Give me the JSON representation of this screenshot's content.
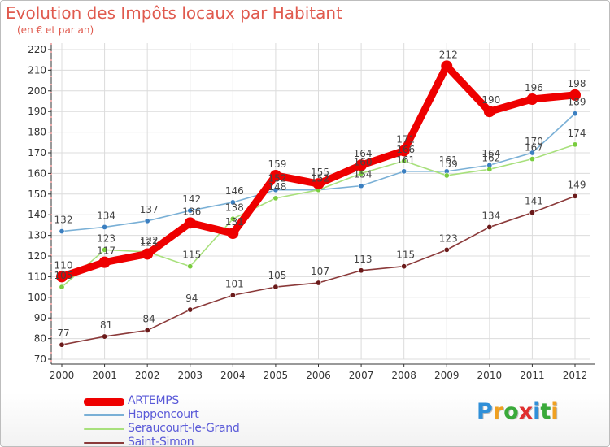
{
  "title": "Evolution des Impôts locaux par Habitant",
  "subtitle": "(en € et par an)",
  "colors": {
    "title": "#e05a4e",
    "axis": "#333333",
    "axis_accent": "#e06060",
    "grid": "#dcdcdc",
    "legend_text": "#5a5ad8"
  },
  "logo": {
    "text": "Proxiti",
    "letters": [
      {
        "char": "P",
        "color": "#2f8fd8"
      },
      {
        "char": "r",
        "color": "#f0a020"
      },
      {
        "char": "o",
        "color": "#3aaa3a"
      },
      {
        "char": "x",
        "color": "#e03030"
      },
      {
        "char": "i",
        "color": "#2f8fd8"
      },
      {
        "char": "t",
        "color": "#3aaa3a"
      },
      {
        "char": "i",
        "color": "#f0a020"
      }
    ]
  },
  "chart_data": {
    "type": "line",
    "title": "Evolution des Impôts locaux par Habitant",
    "subtitle": "(en € et par an)",
    "x": [
      "2000",
      "2001",
      "2002",
      "2003",
      "2004",
      "2005",
      "2006",
      "2007",
      "2008",
      "2009",
      "2010",
      "2011",
      "2012"
    ],
    "ylim": [
      70,
      220
    ],
    "yticks": [
      70,
      80,
      90,
      100,
      110,
      120,
      130,
      140,
      150,
      160,
      170,
      180,
      190,
      200,
      210,
      220
    ],
    "grid": true,
    "legend_position": "bottom-left",
    "series": [
      {
        "name": "ARTEMPS",
        "color": "#ee0000",
        "point_color": "#ee0000",
        "emphasis": true,
        "values": [
          110,
          117,
          121,
          136,
          131,
          159,
          155,
          164,
          171,
          212,
          190,
          196,
          198
        ],
        "labels": [
          "110",
          "117",
          "121",
          "136",
          "131",
          "159",
          "155",
          "164",
          "171",
          "212",
          "190",
          "196",
          "198"
        ]
      },
      {
        "name": "Happencourt",
        "color": "#7ab0d6",
        "point_color": "#3b7fc0",
        "emphasis": false,
        "values": [
          132,
          134,
          137,
          142,
          146,
          152,
          152,
          154,
          161,
          161,
          164,
          170,
          189
        ],
        "labels": [
          "132",
          "134",
          "137",
          "142",
          "146",
          "152",
          "152",
          "154",
          "161",
          "161",
          "164",
          "170",
          "189"
        ]
      },
      {
        "name": "Seraucourt-le-Grand",
        "color": "#a8e07c",
        "point_color": "#79cc3e",
        "emphasis": false,
        "values": [
          105,
          123,
          122,
          115,
          138,
          148,
          152,
          160,
          166,
          159,
          162,
          167,
          174
        ],
        "labels": [
          "105",
          "123",
          "122",
          "115",
          "138",
          "148",
          "152",
          "160",
          "166",
          "159",
          "162",
          "167",
          "174"
        ]
      },
      {
        "name": "Saint-Simon",
        "color": "#8b3a3a",
        "point_color": "#6a1a1a",
        "emphasis": false,
        "values": [
          77,
          81,
          84,
          94,
          101,
          105,
          107,
          113,
          115,
          123,
          134,
          141,
          149
        ],
        "labels": [
          "77",
          "81",
          "84",
          "94",
          "101",
          "105",
          "107",
          "113",
          "115",
          "123",
          "134",
          "141",
          "149"
        ]
      }
    ]
  }
}
